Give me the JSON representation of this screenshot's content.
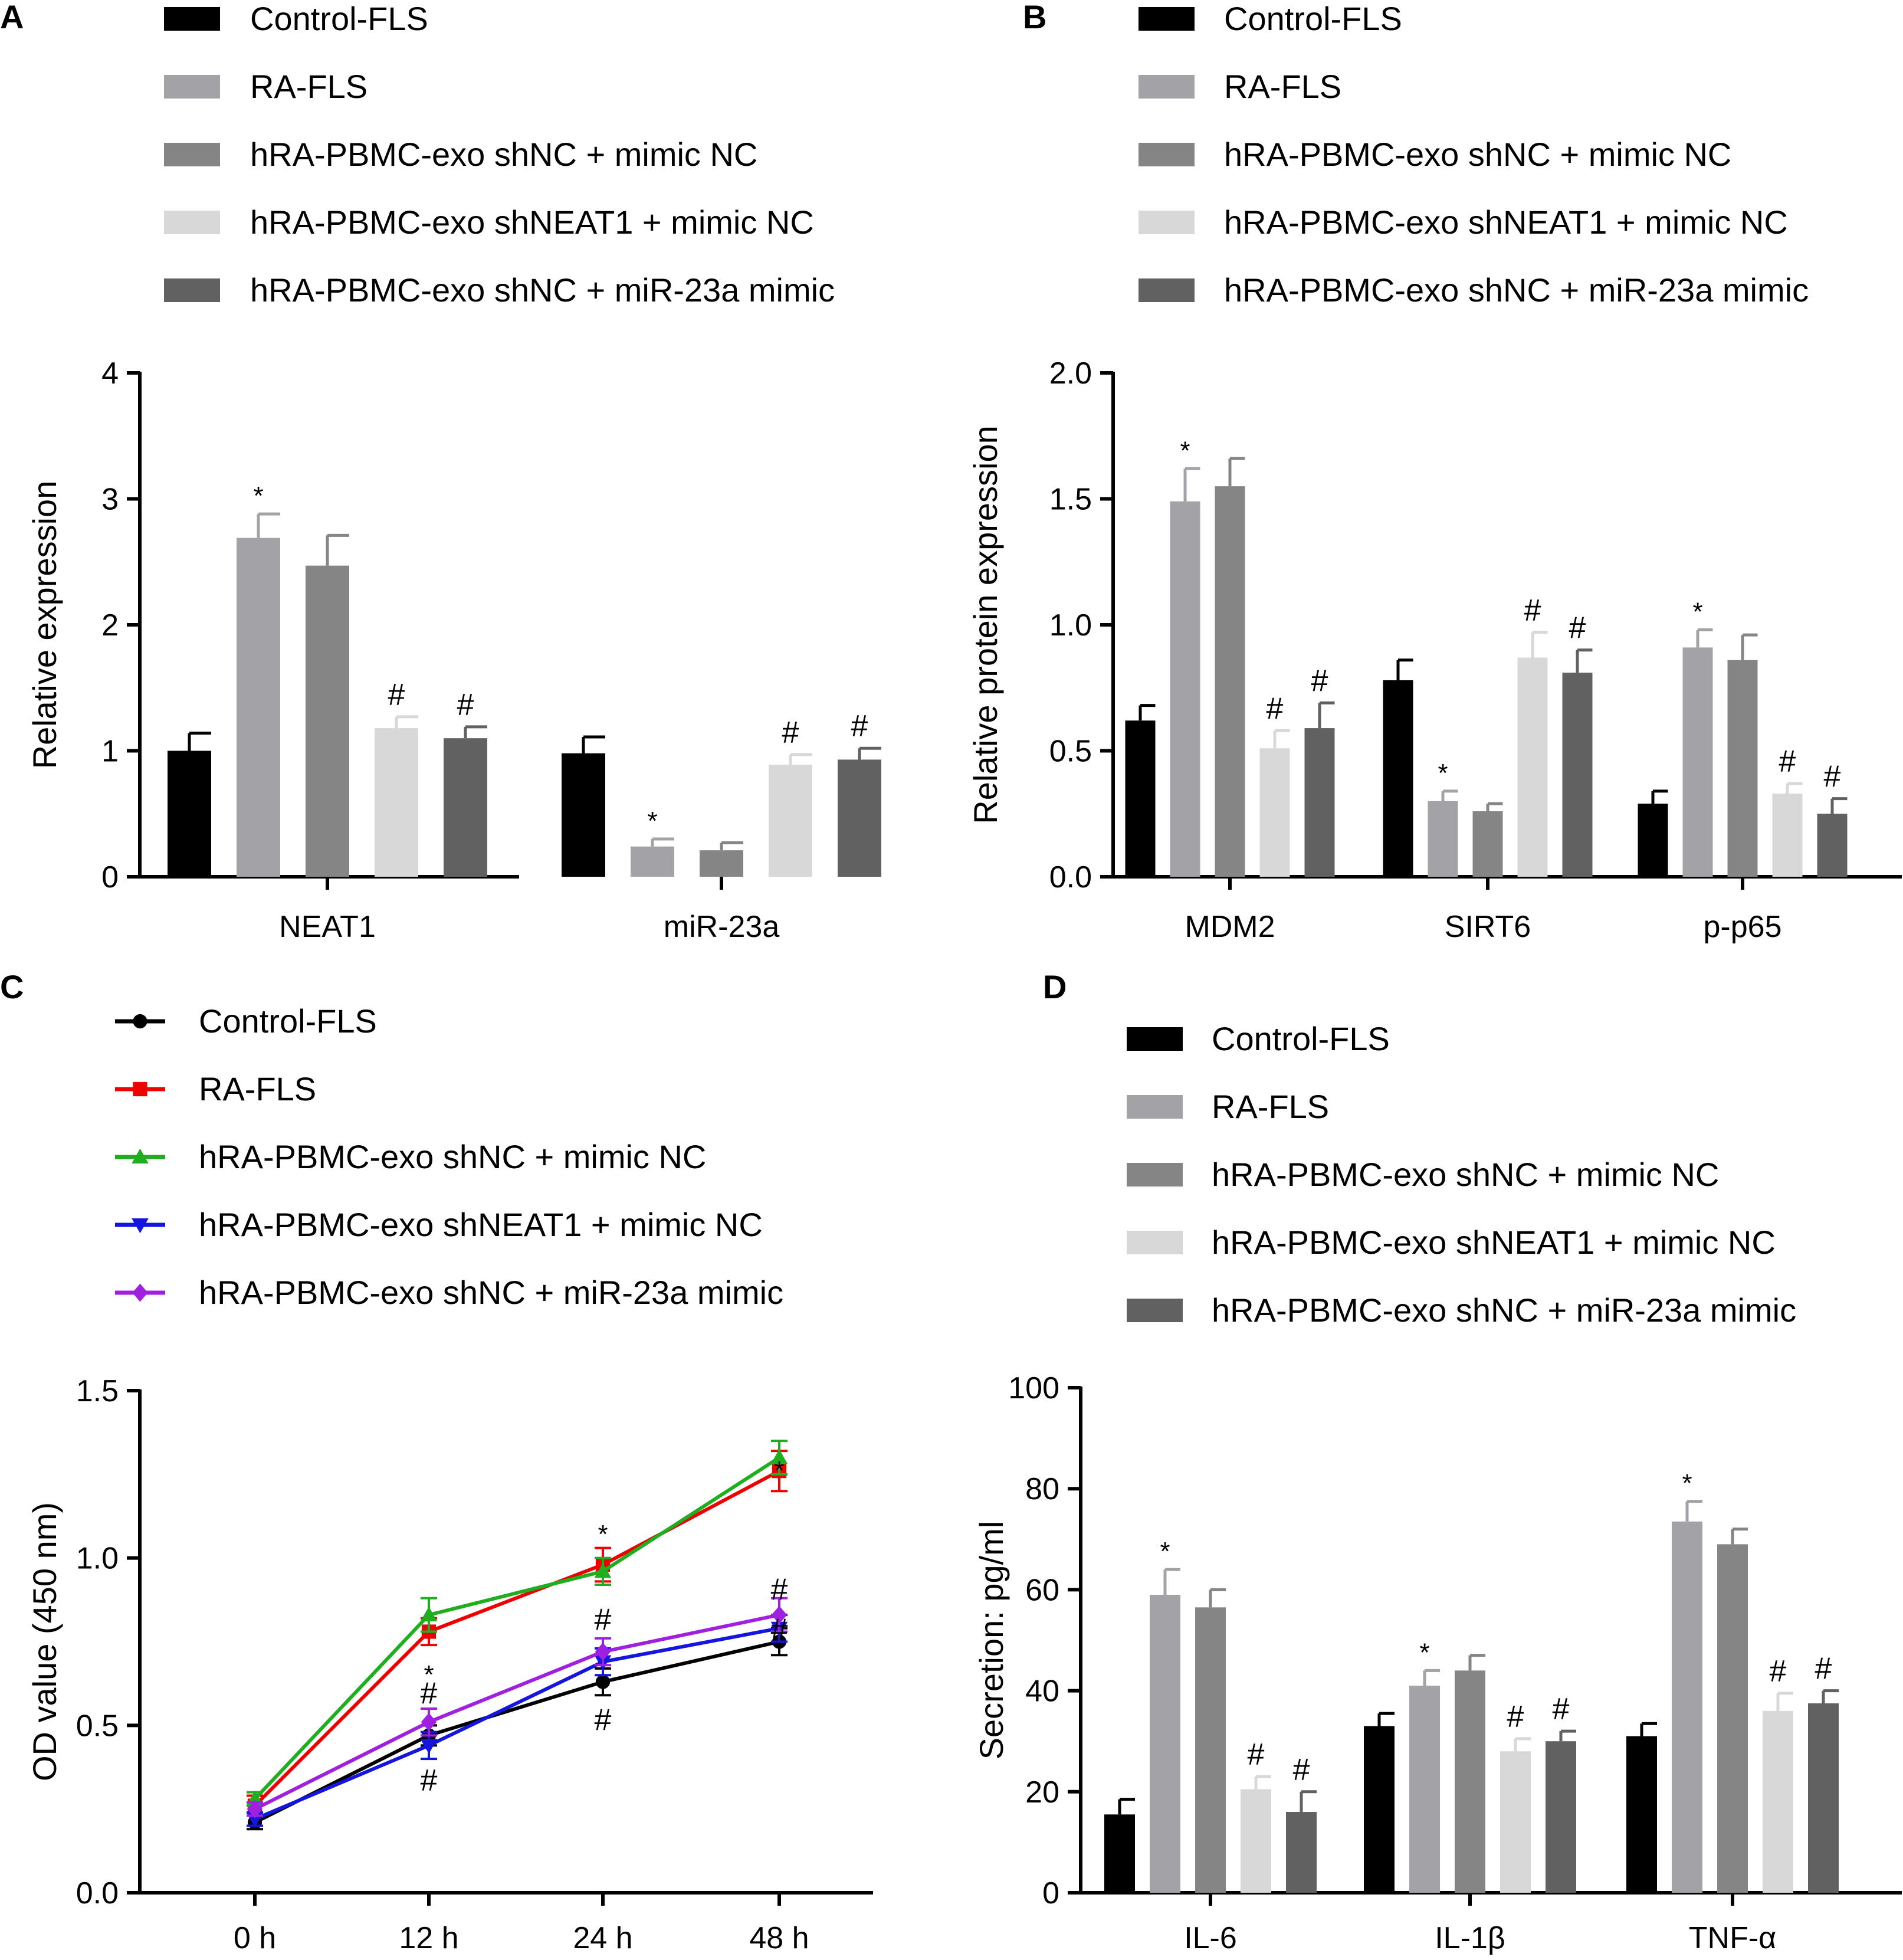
{
  "panels": [
    {
      "id": "A",
      "label": "A",
      "type": "bar",
      "ylabel": "Relative expression",
      "ylim": [
        0,
        4
      ],
      "yticks": [
        "0",
        "1",
        "2",
        "3",
        "4"
      ],
      "categories": [
        "NEAT1",
        "miR-23a"
      ],
      "legend": [
        "Control-FLS",
        "RA-FLS",
        "hRA-PBMC-exo shNC + mimic NC",
        "hRA-PBMC-exo shNEAT1 + mimic NC",
        "hRA-PBMC-exo shNC + miR-23a mimic"
      ],
      "colors": [
        "#000000",
        "#a3a3a7",
        "#858585",
        "#d8d8d8",
        "#616161"
      ],
      "series": [
        {
          "name": "Control-FLS",
          "values": [
            1.0,
            0.98
          ],
          "errors": [
            0.14,
            0.13
          ],
          "marks": [
            "",
            ""
          ]
        },
        {
          "name": "RA-FLS",
          "values": [
            2.69,
            0.24
          ],
          "errors": [
            0.19,
            0.06
          ],
          "marks": [
            "*",
            "*"
          ]
        },
        {
          "name": "hRA-PBMC-exo shNC + mimic NC",
          "values": [
            2.47,
            0.21
          ],
          "errors": [
            0.24,
            0.06
          ],
          "marks": [
            "",
            ""
          ]
        },
        {
          "name": "hRA-PBMC-exo shNEAT1 + mimic NC",
          "values": [
            1.18,
            0.89
          ],
          "errors": [
            0.09,
            0.08
          ],
          "marks": [
            "#",
            "#"
          ]
        },
        {
          "name": "hRA-PBMC-exo shNC + miR-23a mimic",
          "values": [
            1.1,
            0.93
          ],
          "errors": [
            0.09,
            0.09
          ],
          "marks": [
            "#",
            "#"
          ]
        }
      ]
    },
    {
      "id": "B",
      "label": "B",
      "type": "bar",
      "ylabel": "Relative protein expression",
      "ylim": [
        0,
        2
      ],
      "yticks": [
        "0.0",
        "0.5",
        "1.0",
        "1.5",
        "2.0"
      ],
      "categories": [
        "MDM2",
        "SIRT6",
        "p-p65"
      ],
      "legend": [
        "Control-FLS",
        "RA-FLS",
        "hRA-PBMC-exo shNC + mimic NC",
        "hRA-PBMC-exo shNEAT1 + mimic NC",
        "hRA-PBMC-exo shNC + miR-23a mimic"
      ],
      "colors": [
        "#000000",
        "#a3a3a7",
        "#858585",
        "#d8d8d8",
        "#616161"
      ],
      "series": [
        {
          "name": "Control-FLS",
          "values": [
            0.62,
            0.78,
            0.29
          ],
          "errors": [
            0.06,
            0.08,
            0.05
          ],
          "marks": [
            "",
            "",
            ""
          ]
        },
        {
          "name": "RA-FLS",
          "values": [
            1.49,
            0.3,
            0.91
          ],
          "errors": [
            0.13,
            0.04,
            0.07
          ],
          "marks": [
            "*",
            "*",
            "*"
          ]
        },
        {
          "name": "hRA-PBMC-exo shNC + mimic NC",
          "values": [
            1.55,
            0.26,
            0.86
          ],
          "errors": [
            0.11,
            0.03,
            0.1
          ],
          "marks": [
            "",
            "",
            ""
          ]
        },
        {
          "name": "hRA-PBMC-exo shNEAT1 + mimic NC",
          "values": [
            0.51,
            0.87,
            0.33
          ],
          "errors": [
            0.07,
            0.1,
            0.04
          ],
          "marks": [
            "#",
            "#",
            "#"
          ]
        },
        {
          "name": "hRA-PBMC-exo shNC + miR-23a mimic",
          "values": [
            0.59,
            0.81,
            0.25
          ],
          "errors": [
            0.1,
            0.09,
            0.06
          ],
          "marks": [
            "#",
            "#",
            "#"
          ]
        }
      ]
    },
    {
      "id": "C",
      "label": "C",
      "type": "line",
      "ylabel": "OD value (450 nm)",
      "ylim": [
        0,
        1.5
      ],
      "yticks": [
        "0.0",
        "0.5",
        "1.0",
        "1.5"
      ],
      "categories": [
        "0 h",
        "12 h",
        "24 h",
        "48 h"
      ],
      "legend": [
        "Control-FLS",
        "RA-FLS",
        "hRA-PBMC-exo shNC + mimic NC",
        "hRA-PBMC-exo shNEAT1 + mimic NC",
        "hRA-PBMC-exo shNC + miR-23a mimic"
      ],
      "colors": [
        "#000000",
        "#ee0000",
        "#1fae1f",
        "#1515e0",
        "#a020e0"
      ],
      "markers": [
        "circle",
        "square",
        "triangle-up",
        "triangle-down",
        "diamond"
      ],
      "series": [
        {
          "name": "Control-FLS",
          "values": [
            0.21,
            0.47,
            0.63,
            0.75
          ],
          "errors": [
            0.02,
            0.03,
            0.04,
            0.04
          ]
        },
        {
          "name": "RA-FLS",
          "values": [
            0.26,
            0.78,
            0.98,
            1.26
          ],
          "errors": [
            0.03,
            0.04,
            0.05,
            0.06
          ]
        },
        {
          "name": "hRA-PBMC-exo shNC + mimic NC",
          "values": [
            0.28,
            0.83,
            0.96,
            1.3
          ],
          "errors": [
            0.02,
            0.05,
            0.04,
            0.05
          ]
        },
        {
          "name": "hRA-PBMC-exo shNEAT1 + mimic NC",
          "values": [
            0.22,
            0.44,
            0.69,
            0.79
          ],
          "errors": [
            0.02,
            0.04,
            0.04,
            0.04
          ]
        },
        {
          "name": "hRA-PBMC-exo shNC + miR-23a mimic",
          "values": [
            0.25,
            0.51,
            0.72,
            0.83
          ],
          "errors": [
            0.02,
            0.04,
            0.04,
            0.05
          ]
        }
      ],
      "annotations": [
        {
          "text": "*",
          "x": 1,
          "y": 0.65
        },
        {
          "text": "#",
          "x": 1,
          "y": 0.59
        },
        {
          "text": "#",
          "x": 1,
          "y": 0.33
        },
        {
          "text": "*",
          "x": 2,
          "y": 1.07
        },
        {
          "text": "#",
          "x": 2,
          "y": 0.81
        },
        {
          "text": "#",
          "x": 2,
          "y": 0.51
        },
        {
          "text": "#",
          "x": 3,
          "y": 0.9
        },
        {
          "text": "*",
          "x": 3.1,
          "y": 1.26
        },
        {
          "text": "#",
          "x": 3.1,
          "y": 0.78
        }
      ]
    },
    {
      "id": "D",
      "label": "D",
      "type": "bar",
      "ylabel": "Secretion: pg/ml",
      "ylim": [
        0,
        100
      ],
      "yticks": [
        "0",
        "20",
        "40",
        "60",
        "80",
        "100"
      ],
      "categories": [
        "IL-6",
        "IL-1β",
        "TNF-α"
      ],
      "legend": [
        "Control-FLS",
        "RA-FLS",
        "hRA-PBMC-exo shNC + mimic NC",
        "hRA-PBMC-exo shNEAT1 + mimic NC",
        "hRA-PBMC-exo shNC + miR-23a mimic"
      ],
      "colors": [
        "#000000",
        "#a3a3a7",
        "#858585",
        "#d8d8d8",
        "#616161"
      ],
      "series": [
        {
          "name": "Control-FLS",
          "values": [
            15.5,
            33,
            31
          ],
          "errors": [
            3,
            2.5,
            2.5
          ],
          "marks": [
            "",
            "",
            ""
          ]
        },
        {
          "name": "RA-FLS",
          "values": [
            59,
            41,
            73.5
          ],
          "errors": [
            5,
            3,
            4
          ],
          "marks": [
            "*",
            "*",
            "*"
          ]
        },
        {
          "name": "hRA-PBMC-exo shNC + mimic NC",
          "values": [
            56.5,
            44,
            69
          ],
          "errors": [
            3.5,
            3,
            3
          ],
          "marks": [
            "",
            "",
            ""
          ]
        },
        {
          "name": "hRA-PBMC-exo shNEAT1 + mimic NC",
          "values": [
            20.5,
            28,
            36
          ],
          "errors": [
            2.5,
            2.5,
            3.5
          ],
          "marks": [
            "#",
            "#",
            "#"
          ]
        },
        {
          "name": "hRA-PBMC-exo shNC + miR-23a mimic",
          "values": [
            16,
            30,
            37.5
          ],
          "errors": [
            4,
            2,
            2.5
          ],
          "marks": [
            "#",
            "#",
            "#"
          ]
        }
      ]
    }
  ]
}
